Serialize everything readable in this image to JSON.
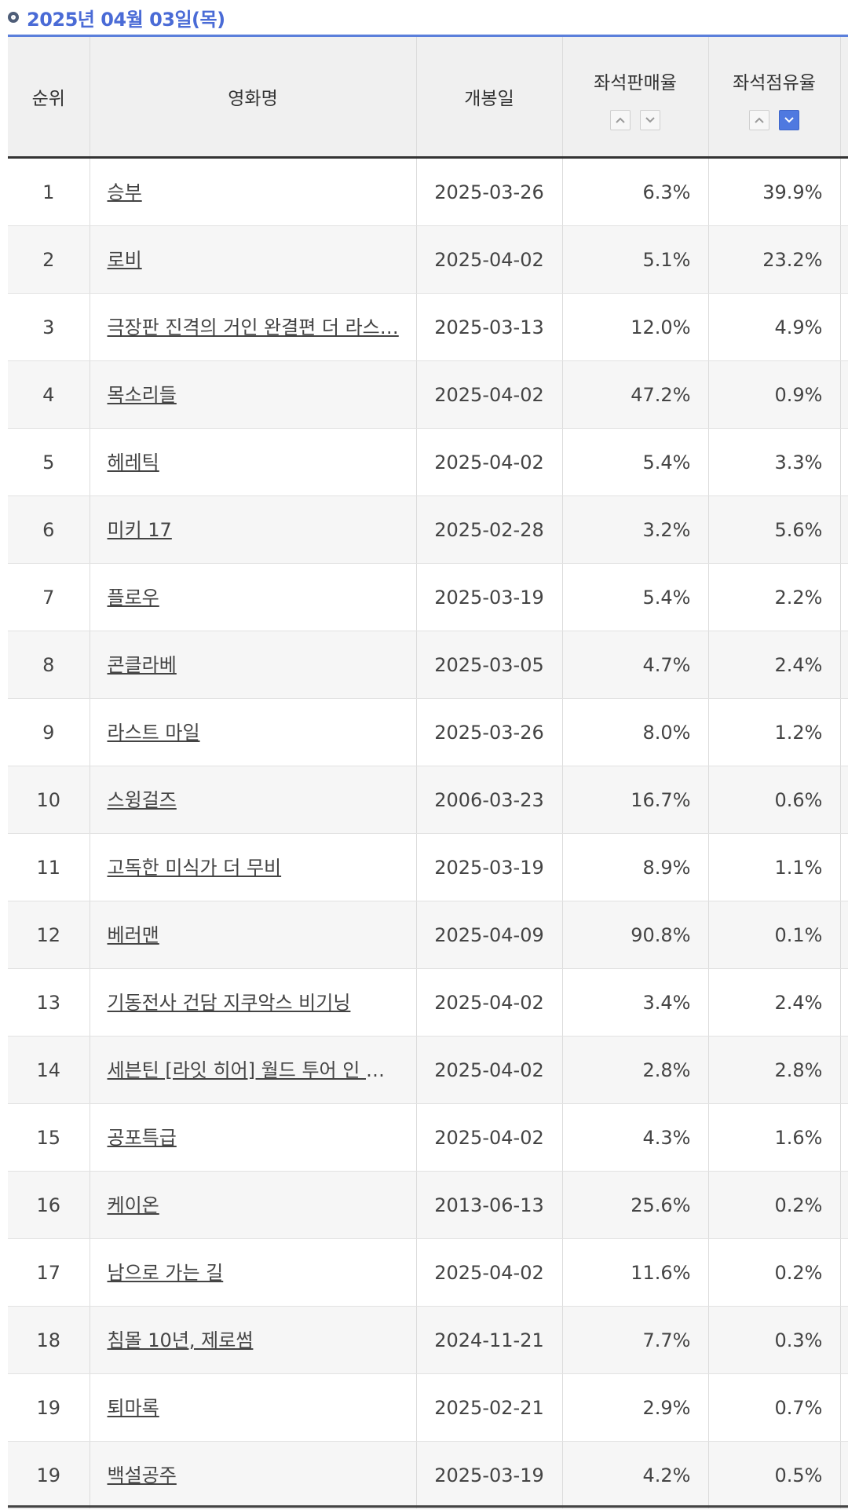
{
  "header": {
    "date_title": "2025년 04월 03일(목)"
  },
  "table": {
    "columns": {
      "rank": "순위",
      "title": "영화명",
      "release": "개봉일",
      "seat_sales": "좌석판매율",
      "seat_share": "좌석점유율"
    },
    "sort": {
      "seat_sales": "none",
      "seat_share": "descending"
    },
    "rows": [
      {
        "rank": "1",
        "title": "승부",
        "release": "2025-03-26",
        "seat_sales": "6.3%",
        "seat_share": "39.9%"
      },
      {
        "rank": "2",
        "title": "로비",
        "release": "2025-04-02",
        "seat_sales": "5.1%",
        "seat_share": "23.2%"
      },
      {
        "rank": "3",
        "title": "극장판 진격의 거인 완결편 더 라스…",
        "release": "2025-03-13",
        "seat_sales": "12.0%",
        "seat_share": "4.9%"
      },
      {
        "rank": "4",
        "title": "목소리들",
        "release": "2025-04-02",
        "seat_sales": "47.2%",
        "seat_share": "0.9%"
      },
      {
        "rank": "5",
        "title": "헤레틱",
        "release": "2025-04-02",
        "seat_sales": "5.4%",
        "seat_share": "3.3%"
      },
      {
        "rank": "6",
        "title": "미키 17",
        "release": "2025-02-28",
        "seat_sales": "3.2%",
        "seat_share": "5.6%"
      },
      {
        "rank": "7",
        "title": "플로우",
        "release": "2025-03-19",
        "seat_sales": "5.4%",
        "seat_share": "2.2%"
      },
      {
        "rank": "8",
        "title": "콘클라베",
        "release": "2025-03-05",
        "seat_sales": "4.7%",
        "seat_share": "2.4%"
      },
      {
        "rank": "9",
        "title": "라스트 마일",
        "release": "2025-03-26",
        "seat_sales": "8.0%",
        "seat_share": "1.2%"
      },
      {
        "rank": "10",
        "title": "스윙걸즈",
        "release": "2006-03-23",
        "seat_sales": "16.7%",
        "seat_share": "0.6%"
      },
      {
        "rank": "11",
        "title": "고독한 미식가 더 무비",
        "release": "2025-03-19",
        "seat_sales": "8.9%",
        "seat_share": "1.1%"
      },
      {
        "rank": "12",
        "title": "베러맨",
        "release": "2025-04-09",
        "seat_sales": "90.8%",
        "seat_share": "0.1%"
      },
      {
        "rank": "13",
        "title": "기동전사 건담 지쿠악스 비기닝",
        "release": "2025-04-02",
        "seat_sales": "3.4%",
        "seat_share": "2.4%"
      },
      {
        "rank": "14",
        "title": "세븐틴 [라잇 히어] 월드 투어 인 시…",
        "release": "2025-04-02",
        "seat_sales": "2.8%",
        "seat_share": "2.8%"
      },
      {
        "rank": "15",
        "title": "공포특급",
        "release": "2025-04-02",
        "seat_sales": "4.3%",
        "seat_share": "1.6%"
      },
      {
        "rank": "16",
        "title": "케이온",
        "release": "2013-06-13",
        "seat_sales": "25.6%",
        "seat_share": "0.2%"
      },
      {
        "rank": "17",
        "title": "남으로 가는 길",
        "release": "2025-04-02",
        "seat_sales": "11.6%",
        "seat_share": "0.2%"
      },
      {
        "rank": "18",
        "title": "침몰 10년, 제로썸",
        "release": "2024-11-21",
        "seat_sales": "7.7%",
        "seat_share": "0.3%"
      },
      {
        "rank": "19",
        "title": "퇴마록",
        "release": "2025-02-21",
        "seat_sales": "2.9%",
        "seat_share": "0.7%"
      },
      {
        "rank": "19",
        "title": "백설공주",
        "release": "2025-03-19",
        "seat_sales": "4.2%",
        "seat_share": "0.5%"
      }
    ]
  }
}
